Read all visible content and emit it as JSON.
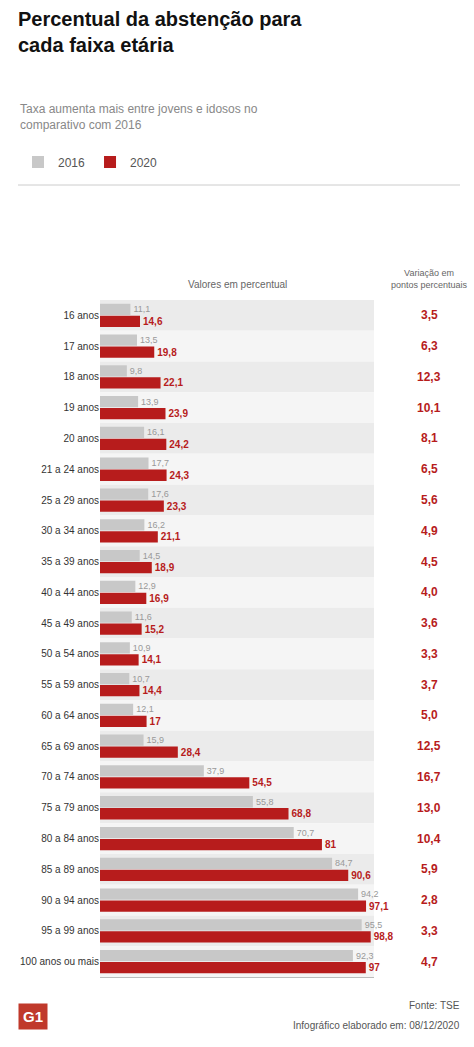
{
  "chart_data": {
    "type": "bar",
    "orientation": "horizontal",
    "title": "Percentual da abstenção para\ncada faixa etária",
    "subtitle": "Taxa aumenta mais entre jovens e idosos no\ncomparativo com 2016",
    "categories": [
      "16 anos",
      "17 anos",
      "18 anos",
      "19 anos",
      "20 anos",
      "21 a 24 anos",
      "25 a 29 anos",
      "30 a 34 anos",
      "35 a 39 anos",
      "40 a 44 anos",
      "45 a 49 anos",
      "50 a 54 anos",
      "55 a 59 anos",
      "60 a 64 anos",
      "65 a 69 anos",
      "70 a 74 anos",
      "75 a 79 anos",
      "80 a 84 anos",
      "85 a 89 anos",
      "90 a 94 anos",
      "95 a 99 anos",
      "100 anos ou mais"
    ],
    "series": [
      {
        "name": "2016",
        "color": "#c8c8c8",
        "values": [
          11.1,
          13.5,
          9.8,
          13.9,
          16.1,
          17.7,
          17.6,
          16.2,
          14.5,
          12.9,
          11.6,
          10.9,
          10.7,
          12.1,
          15.9,
          37.9,
          55.8,
          70.7,
          84.7,
          94.2,
          95.5,
          92.3
        ],
        "value_labels": [
          "11,1",
          "13,5",
          "9,8",
          "13,9",
          "16,1",
          "17,7",
          "17,6",
          "16,2",
          "14,5",
          "12,9",
          "11,6",
          "10,9",
          "10,7",
          "12,1",
          "15,9",
          "37,9",
          "55,8",
          "70,7",
          "84,7",
          "94,2",
          "95,5",
          "92,3"
        ]
      },
      {
        "name": "2020",
        "color": "#b71c1c",
        "values": [
          14.6,
          19.8,
          22.1,
          23.9,
          24.2,
          24.3,
          23.3,
          21.1,
          18.9,
          16.9,
          15.2,
          14.1,
          14.4,
          17.0,
          28.4,
          54.5,
          68.8,
          81.0,
          90.6,
          97.1,
          98.8,
          97.0
        ],
        "value_labels": [
          "14,6",
          "19,8",
          "22,1",
          "23,9",
          "24,2",
          "24,3",
          "23,3",
          "21,1",
          "18,9",
          "16,9",
          "15,2",
          "14,1",
          "14,4",
          "17",
          "28,4",
          "54,5",
          "68,8",
          "81",
          "90,6",
          "97,1",
          "98,8",
          "97"
        ]
      }
    ],
    "data_labels": true,
    "variation": [
      3.5,
      6.3,
      12.3,
      10.1,
      8.1,
      6.5,
      5.6,
      4.9,
      4.5,
      4.0,
      3.6,
      3.3,
      3.7,
      5.0,
      12.5,
      16.7,
      13.0,
      10.4,
      5.9,
      2.8,
      3.3,
      4.7
    ],
    "variation_labels": [
      "3,5",
      "6,3",
      "12,3",
      "10,1",
      "8,1",
      "6,5",
      "5,6",
      "4,9",
      "4,5",
      "4,0",
      "3,6",
      "3,3",
      "3,7",
      "5,0",
      "12,5",
      "16,7",
      "13,0",
      "10,4",
      "5,9",
      "2,8",
      "3,3",
      "4,7"
    ],
    "annotations": [
      "Valores em percentual",
      "Variação em\npontos percentuais",
      "Fonte: TSE",
      "Infográfico elaborado em: 08/12/2020",
      "G1"
    ],
    "xlim": [
      0,
      100
    ],
    "xticks": [],
    "tick_labels": "y",
    "grid": false,
    "legend": "top left"
  }
}
